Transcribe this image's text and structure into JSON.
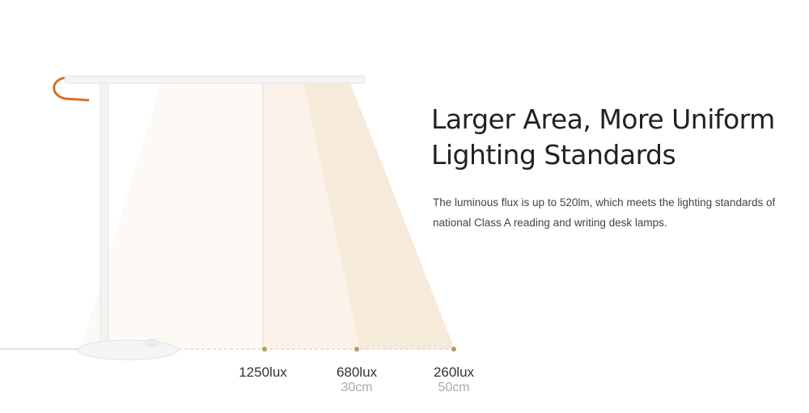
{
  "heading": {
    "line1": "Larger Area, More Uniform",
    "line2": "Lighting Standards"
  },
  "description": "The luminous flux is up to 520lm, which meets the lighting standards of national Class A reading and writing desk lamps.",
  "measurements": [
    {
      "lux": "1250lux",
      "distance": ""
    },
    {
      "lux": "680lux",
      "distance": "30cm"
    },
    {
      "lux": "260lux",
      "distance": "50cm"
    }
  ],
  "colors": {
    "light_beam": "#f6eadb",
    "marker": "#b89a6a",
    "cable": "#d9702a"
  }
}
